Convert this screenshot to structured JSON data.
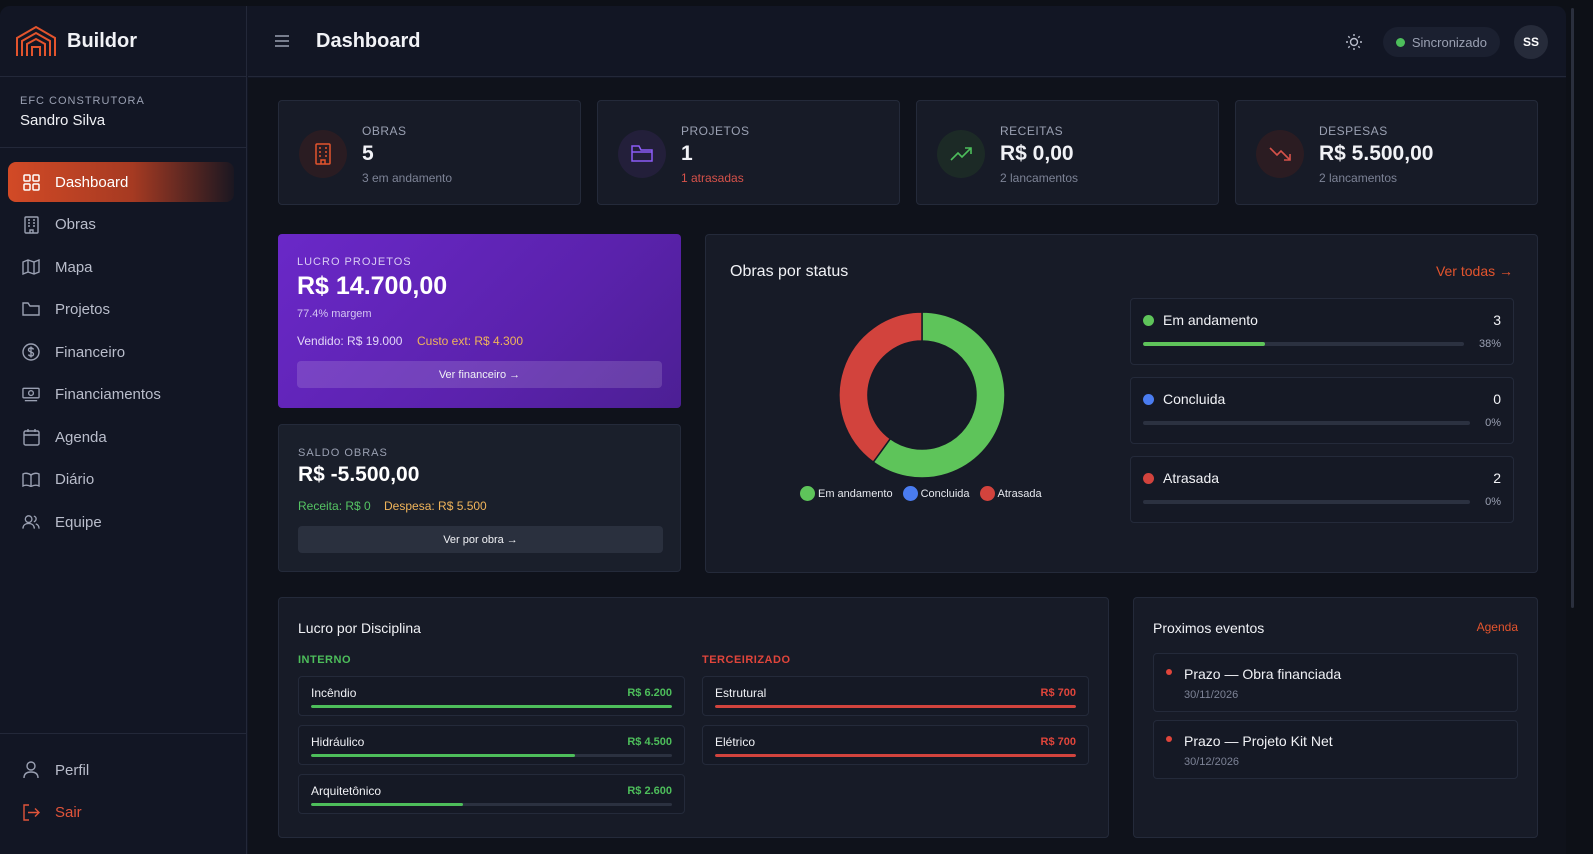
{
  "brand": {
    "name": "Buildor"
  },
  "company": {
    "name": "EFC CONSTRUTORA",
    "user": "Sandro Silva"
  },
  "nav": [
    {
      "label": "Dashboard",
      "icon": "grid-icon",
      "active": true
    },
    {
      "label": "Obras",
      "icon": "building-icon"
    },
    {
      "label": "Mapa",
      "icon": "map-icon"
    },
    {
      "label": "Projetos",
      "icon": "folder-icon"
    },
    {
      "label": "Financeiro",
      "icon": "dollar-icon"
    },
    {
      "label": "Financiamentos",
      "icon": "banknote-icon"
    },
    {
      "label": "Agenda",
      "icon": "calendar-icon"
    },
    {
      "label": "Diário",
      "icon": "book-icon"
    },
    {
      "label": "Equipe",
      "icon": "users-icon"
    }
  ],
  "nav_bottom": [
    {
      "label": "Perfil",
      "icon": "user-icon"
    },
    {
      "label": "Sair",
      "icon": "logout-icon"
    }
  ],
  "header": {
    "title": "Dashboard",
    "sync_label": "Sincronizado",
    "avatar_initials": "SS"
  },
  "stats": [
    {
      "label": "OBRAS",
      "value": "5",
      "sub": "3 em andamento",
      "color": "#e3542d"
    },
    {
      "label": "PROJETOS",
      "value": "1",
      "sub": "1 atrasadas",
      "color": "#8b5cf6"
    },
    {
      "label": "RECEITAS",
      "value": "R$ 0,00",
      "sub": "2 lancamentos",
      "color": "#4dbe5b"
    },
    {
      "label": "DESPESAS",
      "value": "R$ 5.500,00",
      "sub": "2 lancamentos",
      "color": "#d6524a"
    }
  ],
  "lucro": {
    "label": "LUCRO PROJETOS",
    "value": "R$ 14.700,00",
    "margin": "77.4% margem",
    "vendido": "Vendido: R$ 19.000",
    "custo": "Custo ext: R$ 4.300",
    "button": "Ver financeiro →"
  },
  "saldo": {
    "label": "SALDO OBRAS",
    "value": "R$ -5.500,00",
    "receita": "Receita: R$ 0",
    "despesa": "Despesa: R$ 5.500",
    "button": "Ver por obra →"
  },
  "status_card": {
    "title": "Obras por status",
    "link": "Ver todas →",
    "items": [
      {
        "name": "Em andamento",
        "count": "3",
        "pct_label": "38%",
        "fill": 0.38,
        "color": "#5ec45a"
      },
      {
        "name": "Concluida",
        "count": "0",
        "pct_label": "0%",
        "fill": 0,
        "color": "#4a7cf0"
      },
      {
        "name": "Atrasada",
        "count": "2",
        "pct_label": "0%",
        "fill": 0,
        "color": "#d2433d"
      }
    ]
  },
  "chart_data": {
    "type": "pie",
    "categories": [
      "Em andamento",
      "Concluida",
      "Atrasada"
    ],
    "values": [
      3,
      0,
      2
    ],
    "colors": [
      "#5ec45a",
      "#4a7cf0",
      "#d2433d"
    ],
    "legend": "bottom"
  },
  "disciplina": {
    "title": "Lucro por Disciplina",
    "interno_label": "INTERNO",
    "terceirizado_label": "TERCEIRIZADO",
    "interno": [
      {
        "name": "Incêndio",
        "amount": "R$ 6.200",
        "fill": 1.0
      },
      {
        "name": "Hidráulico",
        "amount": "R$ 4.500",
        "fill": 0.73
      },
      {
        "name": "Arquitetônico",
        "amount": "R$ 2.600",
        "fill": 0.42
      }
    ],
    "terceirizado": [
      {
        "name": "Estrutural",
        "amount": "R$ 700",
        "fill": 1.0
      },
      {
        "name": "Elétrico",
        "amount": "R$ 700",
        "fill": 1.0
      }
    ]
  },
  "events": {
    "title": "Proximos eventos",
    "link": "Agenda",
    "items": [
      {
        "name": "Prazo — Obra financiada",
        "date": "30/11/2026"
      },
      {
        "name": "Prazo — Projeto Kit Net",
        "date": "30/12/2026"
      }
    ]
  }
}
